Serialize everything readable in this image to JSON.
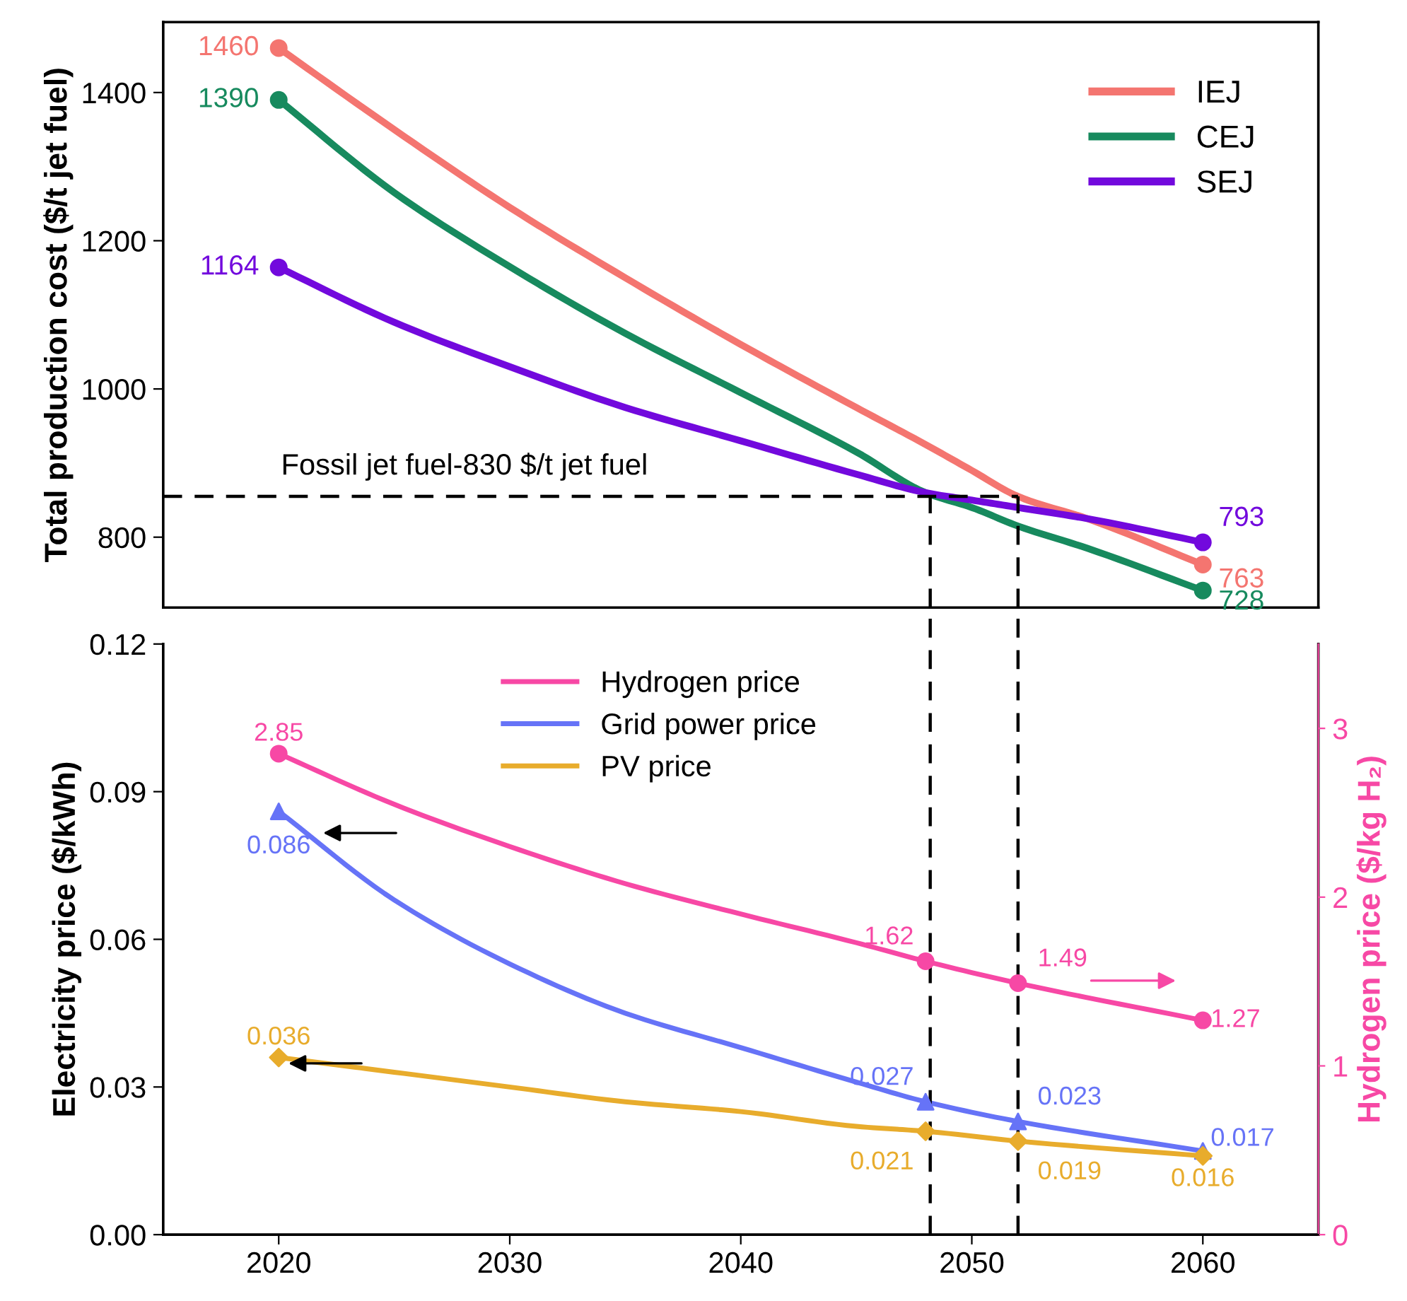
{
  "chart_data": [
    {
      "type": "line",
      "ylabel": "Total production cost ($/t jet fuel)",
      "x": [
        2020,
        2025,
        2030,
        2035,
        2040,
        2045,
        2048,
        2050,
        2052,
        2055,
        2060
      ],
      "xlim": [
        2015,
        2065
      ],
      "xticks": [
        2020,
        2030,
        2040,
        2050,
        2060
      ],
      "ylim": [
        705,
        1495
      ],
      "yticks": [
        800,
        1000,
        1200,
        1400
      ],
      "tick_labels": "y",
      "legend": "top right",
      "grid": false,
      "series": [
        {
          "name": "IEJ",
          "color": "#f47570",
          "values": [
            1460,
            1350,
            1245,
            1150,
            1060,
            975,
            925,
            890,
            855,
            825,
            763
          ]
        },
        {
          "name": "CEJ",
          "color": "#178a5e",
          "values": [
            1390,
            1265,
            1165,
            1075,
            995,
            915,
            860,
            840,
            815,
            785,
            728
          ]
        },
        {
          "name": "SEJ",
          "color": "#7209dd",
          "values": [
            1164,
            1090,
            1030,
            975,
            930,
            885,
            860,
            850,
            840,
            825,
            793
          ]
        },
        {
          "type": "scatter",
          "color": "#f47570",
          "marker": "circle",
          "x": [
            2020,
            2060
          ],
          "values": [
            1460,
            763
          ],
          "value_labels": [
            "1460",
            "763"
          ]
        },
        {
          "type": "scatter",
          "color": "#178a5e",
          "marker": "circle",
          "x": [
            2020,
            2060
          ],
          "values": [
            1390,
            728
          ],
          "value_labels": [
            "1390",
            "728"
          ]
        },
        {
          "type": "scatter",
          "color": "#7209dd",
          "marker": "circle",
          "x": [
            2020,
            2060
          ],
          "values": [
            1164,
            793
          ],
          "value_labels": [
            "1164",
            "793"
          ]
        }
      ],
      "ref_lines": [
        {
          "axis": "y",
          "value": 855,
          "label": "Fossil jet fuel-830 $/t jet fuel",
          "color": "#000000",
          "line_style": "dashed"
        },
        {
          "axis": "x",
          "value": 2048.2,
          "color": "#000000",
          "line_style": "dashed"
        },
        {
          "axis": "x",
          "value": 2052,
          "color": "#000000",
          "line_style": "dashed"
        }
      ]
    },
    {
      "type": "line",
      "ylabel": "Electricity price ($/kWh)",
      "y2label": "Hydrogen price ($/kg H₂)",
      "x": [
        2020,
        2025,
        2030,
        2035,
        2040,
        2045,
        2048,
        2052,
        2060
      ],
      "xlim": [
        2015,
        2065
      ],
      "xticks": [
        2020,
        2030,
        2040,
        2050,
        2060
      ],
      "ylim": [
        0,
        0.12
      ],
      "yticks": [
        {
          "value": 0,
          "label": "0.00"
        },
        {
          "value": 0.03,
          "label": "0.03"
        },
        {
          "value": 0.06,
          "label": "0.06"
        },
        {
          "value": 0.09,
          "label": "0.09"
        },
        {
          "value": 0.12,
          "label": "0.12"
        }
      ],
      "y2lim": [
        0,
        3.5
      ],
      "y2ticks": [
        0,
        1,
        2,
        3
      ],
      "legend": "top",
      "grid": false,
      "series": [
        {
          "name": "Hydrogen price",
          "color": "#f748a5",
          "axis": "y2",
          "values": [
            2.85,
            2.55,
            2.3,
            2.08,
            1.9,
            1.73,
            1.62,
            1.49,
            1.27
          ]
        },
        {
          "name": "Grid power price",
          "color": "#6673f7",
          "values": [
            0.086,
            0.068,
            0.055,
            0.045,
            0.038,
            0.031,
            0.027,
            0.023,
            0.017
          ]
        },
        {
          "name": "PV price",
          "color": "#e8ac2c",
          "values": [
            0.036,
            0.033,
            0.03,
            0.027,
            0.025,
            0.022,
            0.021,
            0.019,
            0.016
          ]
        },
        {
          "type": "scatter",
          "color": "#f748a5",
          "axis": "y2",
          "marker": "circle",
          "x": [
            2020,
            2048,
            2052,
            2060
          ],
          "values": [
            2.85,
            1.62,
            1.49,
            1.27
          ],
          "value_labels": [
            "2.85",
            "1.62",
            "1.49",
            "1.27"
          ]
        },
        {
          "type": "scatter",
          "color": "#6673f7",
          "marker": "triangle",
          "x": [
            2020,
            2048,
            2052,
            2060
          ],
          "values": [
            0.086,
            0.027,
            0.023,
            0.017
          ],
          "value_labels": [
            "0.086",
            "0.027",
            "0.023",
            "0.017"
          ]
        },
        {
          "type": "scatter",
          "color": "#e8ac2c",
          "marker": "diamond",
          "x": [
            2020,
            2048,
            2052,
            2060
          ],
          "values": [
            0.036,
            0.021,
            0.019,
            0.016
          ],
          "value_labels": [
            "0.036",
            "0.021",
            "0.019",
            "0.016"
          ]
        }
      ],
      "ref_lines": [
        {
          "axis": "x",
          "value": 2048.2,
          "color": "#000000",
          "line_style": "dashed"
        },
        {
          "axis": "x",
          "value": 2052,
          "color": "#000000",
          "line_style": "dashed"
        }
      ]
    }
  ]
}
